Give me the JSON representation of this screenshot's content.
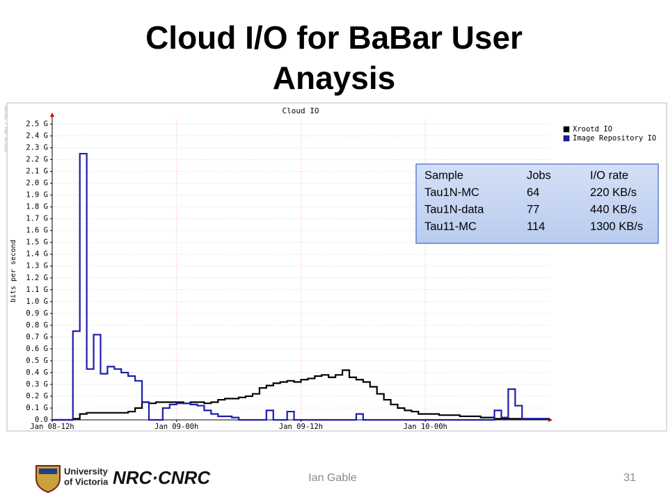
{
  "slide": {
    "title_lines": [
      "Cloud I/O for BaBar User",
      "Anaysis"
    ],
    "footer": "Ian Gable",
    "page": "31",
    "logos": [
      "University",
      "of Victoria",
      "NRC·CNRC"
    ]
  },
  "chart_data": {
    "type": "line",
    "drawstyle": "steps",
    "title": "Cloud IO",
    "y_label": "bits per second",
    "side_note": "RRDTOOL / TOBI OETIKER",
    "categories": [
      "Jan 08-12h",
      null,
      null,
      null,
      null,
      null,
      null,
      null,
      null,
      null,
      null,
      null,
      null,
      null,
      null,
      null,
      null,
      null,
      "Jan 09-00h",
      null,
      null,
      null,
      null,
      null,
      null,
      null,
      null,
      null,
      null,
      null,
      null,
      null,
      null,
      null,
      null,
      null,
      "Jan 09-12h",
      null,
      null,
      null,
      null,
      null,
      null,
      null,
      null,
      null,
      null,
      null,
      null,
      null,
      null,
      null,
      null,
      null,
      "Jan 10-00h",
      null,
      null,
      null,
      null,
      null,
      null,
      null,
      null,
      null,
      null,
      null,
      null,
      null,
      null,
      null,
      null,
      null
    ],
    "series": [
      {
        "name": "Xrootd IO",
        "color": "#000000",
        "values": [
          0,
          0,
          0,
          0.01,
          0.05,
          0.06,
          0.06,
          0.06,
          0.06,
          0.06,
          0.06,
          0.07,
          0.1,
          0.15,
          0.14,
          0.15,
          0.15,
          0.15,
          0.15,
          0.14,
          0.15,
          0.15,
          0.14,
          0.15,
          0.17,
          0.18,
          0.18,
          0.19,
          0.2,
          0.22,
          0.27,
          0.29,
          0.31,
          0.32,
          0.33,
          0.32,
          0.34,
          0.35,
          0.37,
          0.38,
          0.36,
          0.38,
          0.42,
          0.36,
          0.34,
          0.32,
          0.28,
          0.22,
          0.17,
          0.13,
          0.1,
          0.08,
          0.07,
          0.05,
          0.05,
          0.05,
          0.04,
          0.04,
          0.04,
          0.03,
          0.03,
          0.03,
          0.02,
          0.02,
          0.01,
          0.01,
          0.01,
          0.01,
          0.01,
          0.01,
          0.01,
          0.01
        ]
      },
      {
        "name": "Image Repository IO",
        "color": "#1c1caa",
        "values": [
          0,
          0,
          0,
          0.75,
          2.25,
          0.43,
          0.72,
          0.39,
          0.45,
          0.43,
          0.4,
          0.37,
          0.33,
          0.15,
          0,
          0,
          0.1,
          0.13,
          0.14,
          0.14,
          0.13,
          0.12,
          0.08,
          0.05,
          0.03,
          0.03,
          0.02,
          0,
          0,
          0,
          0,
          0.08,
          0,
          0,
          0.07,
          0,
          0,
          0,
          0,
          0,
          0,
          0,
          0,
          0,
          0.05,
          0,
          0,
          0,
          0,
          0,
          0,
          0,
          0,
          0,
          0,
          0,
          0,
          0,
          0,
          0,
          0,
          0,
          0,
          0,
          0.08,
          0.02,
          0.26,
          0.12,
          0.01,
          0.01,
          0.01,
          0.01
        ]
      }
    ],
    "ylim": [
      0,
      2.55
    ],
    "yticks": [
      {
        "value": 0,
        "label": "0.0"
      },
      {
        "value": 0.1,
        "label": "0.1 G"
      },
      {
        "value": 0.2,
        "label": "0.2 G"
      },
      {
        "value": 0.3,
        "label": "0.3 G"
      },
      {
        "value": 0.4,
        "label": "0.4 G"
      },
      {
        "value": 0.5,
        "label": "0.5 G"
      },
      {
        "value": 0.6,
        "label": "0.6 G"
      },
      {
        "value": 0.7,
        "label": "0.7 G"
      },
      {
        "value": 0.8,
        "label": "0.8 G"
      },
      {
        "value": 0.9,
        "label": "0.9 G"
      },
      {
        "value": 1.0,
        "label": "1.0 G"
      },
      {
        "value": 1.1,
        "label": "1.1 G"
      },
      {
        "value": 1.2,
        "label": "1.2 G"
      },
      {
        "value": 1.3,
        "label": "1.3 G"
      },
      {
        "value": 1.4,
        "label": "1.4 G"
      },
      {
        "value": 1.5,
        "label": "1.5 G"
      },
      {
        "value": 1.6,
        "label": "1.6 G"
      },
      {
        "value": 1.7,
        "label": "1.7 G"
      },
      {
        "value": 1.8,
        "label": "1.8 G"
      },
      {
        "value": 1.9,
        "label": "1.9 G"
      },
      {
        "value": 2.0,
        "label": "2.0 G"
      },
      {
        "value": 2.1,
        "label": "2.1 G"
      },
      {
        "value": 2.2,
        "label": "2.2 G"
      },
      {
        "value": 2.3,
        "label": "2.3 G"
      },
      {
        "value": 2.4,
        "label": "2.4 G"
      },
      {
        "value": 2.5,
        "label": "2.5 G"
      }
    ],
    "grid": true,
    "legend": "top-right"
  },
  "table": {
    "header": [
      "Sample",
      "Jobs",
      "I/O rate"
    ],
    "rows": [
      [
        "Tau1N-MC",
        "64",
        "220 KB/s"
      ],
      [
        "Tau1N-data",
        "77",
        "440 KB/s"
      ],
      [
        "Tau11-MC",
        "114",
        "1300 KB/s"
      ]
    ]
  }
}
